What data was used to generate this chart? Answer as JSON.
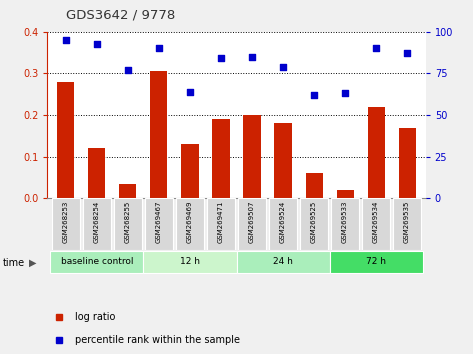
{
  "title": "GDS3642 / 9778",
  "samples": [
    "GSM268253",
    "GSM268254",
    "GSM268255",
    "GSM269467",
    "GSM269469",
    "GSM269471",
    "GSM269507",
    "GSM269524",
    "GSM269525",
    "GSM269533",
    "GSM269534",
    "GSM269535"
  ],
  "log_ratio": [
    0.28,
    0.12,
    0.035,
    0.305,
    0.13,
    0.19,
    0.2,
    0.18,
    0.06,
    0.02,
    0.22,
    0.17
  ],
  "percentile_rank": [
    95,
    93,
    77,
    90,
    64,
    84,
    85,
    79,
    62,
    63,
    90,
    87
  ],
  "bar_color": "#cc2200",
  "dot_color": "#0000cc",
  "ylim_left": [
    0,
    0.4
  ],
  "ylim_right": [
    0,
    100
  ],
  "yticks_left": [
    0,
    0.1,
    0.2,
    0.3,
    0.4
  ],
  "yticks_right": [
    0,
    25,
    50,
    75,
    100
  ],
  "groups": [
    {
      "label": "baseline control",
      "start": 0,
      "end": 3,
      "color": "#aaeebb"
    },
    {
      "label": "12 h",
      "start": 3,
      "end": 6,
      "color": "#ccf5cc"
    },
    {
      "label": "24 h",
      "start": 6,
      "end": 9,
      "color": "#aaeebb"
    },
    {
      "label": "72 h",
      "start": 9,
      "end": 12,
      "color": "#44dd66"
    }
  ],
  "legend_label_ratio": "log ratio",
  "legend_label_pct": "percentile rank within the sample",
  "time_label": "time",
  "bg_color": "#f0f0f0",
  "plot_bg": "#ffffff",
  "tick_color_left": "#cc2200",
  "tick_color_right": "#0000cc",
  "xtick_bg": "#d8d8d8",
  "title_color": "#333333"
}
